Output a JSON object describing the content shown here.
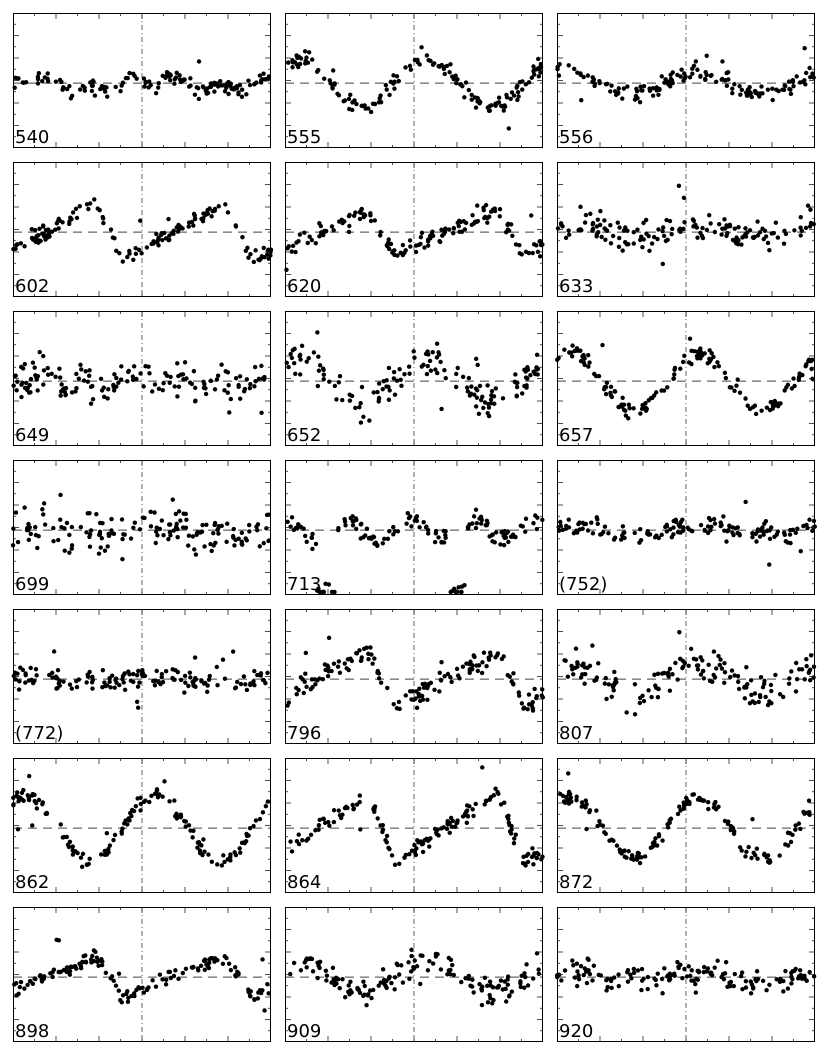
{
  "figure": {
    "panel_labels": [
      "540",
      "555",
      "556",
      "602",
      "620",
      "633",
      "649",
      "652",
      "657",
      "699",
      "713",
      "(752)",
      "(772)",
      "796",
      "807",
      "862",
      "864",
      "872",
      "898",
      "909",
      "920"
    ]
  },
  "chart_data": [
    {
      "type": "scatter",
      "label": "540",
      "x_range": [
        0,
        2
      ],
      "grid": false,
      "reference_line": "dashed horizontal at mean",
      "phase_marker": "dash-dot vertical at phase 1",
      "shape": "irregular",
      "amplitude": 0.18,
      "scatter": 0.16,
      "seed": 11
    },
    {
      "type": "scatter",
      "label": "555",
      "x_range": [
        0,
        2
      ],
      "grid": false,
      "reference_line": "dashed horizontal at mean",
      "phase_marker": "dash-dot vertical at phase 1",
      "shape": "sine",
      "amplitude": 0.45,
      "scatter": 0.16,
      "seed": 12
    },
    {
      "type": "scatter",
      "label": "556",
      "x_range": [
        0,
        2
      ],
      "grid": false,
      "reference_line": "dashed horizontal at mean",
      "phase_marker": "dash-dot vertical at phase 1",
      "shape": "sine",
      "amplitude": 0.22,
      "scatter": 0.16,
      "seed": 13
    },
    {
      "type": "scatter",
      "label": "602",
      "x_range": [
        0,
        2
      ],
      "grid": false,
      "reference_line": "dashed horizontal at mean",
      "phase_marker": "dash-dot vertical at phase 1",
      "shape": "sawtooth",
      "amplitude": 0.55,
      "scatter": 0.14,
      "seed": 14
    },
    {
      "type": "scatter",
      "label": "620",
      "x_range": [
        0,
        2
      ],
      "grid": false,
      "reference_line": "dashed horizontal at mean",
      "phase_marker": "dash-dot vertical at phase 1",
      "shape": "sawtooth",
      "amplitude": 0.45,
      "scatter": 0.16,
      "seed": 15
    },
    {
      "type": "scatter",
      "label": "633",
      "x_range": [
        0,
        2
      ],
      "grid": false,
      "reference_line": "dashed horizontal at mean",
      "phase_marker": "dash-dot vertical at phase 1",
      "shape": "irregular",
      "amplitude": 0.15,
      "scatter": 0.28,
      "seed": 16
    },
    {
      "type": "scatter",
      "label": "649",
      "x_range": [
        0,
        2
      ],
      "grid": false,
      "reference_line": "dashed horizontal at mean",
      "phase_marker": "dash-dot vertical at phase 1",
      "shape": "irregular",
      "amplitude": 0.15,
      "scatter": 0.32,
      "seed": 17
    },
    {
      "type": "scatter",
      "label": "652",
      "x_range": [
        0,
        2
      ],
      "grid": false,
      "reference_line": "dashed horizontal at mean",
      "phase_marker": "dash-dot vertical at phase 1",
      "shape": "sine",
      "amplitude": 0.4,
      "scatter": 0.3,
      "seed": 18
    },
    {
      "type": "scatter",
      "label": "657",
      "x_range": [
        0,
        2
      ],
      "grid": false,
      "reference_line": "dashed horizontal at mean",
      "phase_marker": "dash-dot vertical at phase 1",
      "shape": "sine",
      "amplitude": 0.55,
      "scatter": 0.16,
      "seed": 19
    },
    {
      "type": "scatter",
      "label": "699",
      "x_range": [
        0,
        2
      ],
      "grid": false,
      "reference_line": "dashed horizontal at mean",
      "phase_marker": "dash-dot vertical at phase 1",
      "shape": "irregular",
      "amplitude": 0.18,
      "scatter": 0.35,
      "seed": 20
    },
    {
      "type": "scatter",
      "label": "713",
      "x_range": [
        0,
        2
      ],
      "grid": false,
      "reference_line": "dashed horizontal at mean",
      "phase_marker": "dash-dot vertical at phase 1",
      "shape": "eclipse",
      "amplitude": 0.75,
      "scatter": 0.18,
      "seed": 21
    },
    {
      "type": "scatter",
      "label": "(752)",
      "x_range": [
        0,
        2
      ],
      "grid": false,
      "reference_line": "dashed horizontal at mean",
      "phase_marker": "dash-dot vertical at phase 1",
      "shape": "irregular",
      "amplitude": 0.15,
      "scatter": 0.18,
      "seed": 22
    },
    {
      "type": "scatter",
      "label": "(772)",
      "x_range": [
        0,
        2
      ],
      "grid": false,
      "reference_line": "dashed horizontal at mean",
      "phase_marker": "dash-dot vertical at phase 1",
      "shape": "irregular",
      "amplitude": 0.1,
      "scatter": 0.22,
      "seed": 23
    },
    {
      "type": "scatter",
      "label": "796",
      "x_range": [
        0,
        2
      ],
      "grid": false,
      "reference_line": "dashed horizontal at mean",
      "phase_marker": "dash-dot vertical at phase 1",
      "shape": "sawtooth",
      "amplitude": 0.55,
      "scatter": 0.2,
      "seed": 24
    },
    {
      "type": "scatter",
      "label": "807",
      "x_range": [
        0,
        2
      ],
      "grid": false,
      "reference_line": "dashed horizontal at mean",
      "phase_marker": "dash-dot vertical at phase 1",
      "shape": "sine",
      "amplitude": 0.3,
      "scatter": 0.3,
      "seed": 25
    },
    {
      "type": "scatter",
      "label": "862",
      "x_range": [
        0,
        2
      ],
      "grid": false,
      "reference_line": "dashed horizontal at mean",
      "phase_marker": "dash-dot vertical at phase 1",
      "shape": "sine",
      "amplitude": 0.65,
      "scatter": 0.14,
      "seed": 26
    },
    {
      "type": "scatter",
      "label": "864",
      "x_range": [
        0,
        2
      ],
      "grid": false,
      "reference_line": "dashed horizontal at mean",
      "phase_marker": "dash-dot vertical at phase 1",
      "shape": "sawtooth",
      "amplitude": 0.7,
      "scatter": 0.14,
      "seed": 27
    },
    {
      "type": "scatter",
      "label": "872",
      "x_range": [
        0,
        2
      ],
      "grid": false,
      "reference_line": "dashed horizontal at mean",
      "phase_marker": "dash-dot vertical at phase 1",
      "shape": "sine",
      "amplitude": 0.6,
      "scatter": 0.14,
      "seed": 28
    },
    {
      "type": "scatter",
      "label": "898",
      "x_range": [
        0,
        2
      ],
      "grid": false,
      "reference_line": "dashed horizontal at mean",
      "phase_marker": "dash-dot vertical at phase 1",
      "shape": "sawtooth",
      "amplitude": 0.4,
      "scatter": 0.14,
      "seed": 29
    },
    {
      "type": "scatter",
      "label": "909",
      "x_range": [
        0,
        2
      ],
      "grid": false,
      "reference_line": "dashed horizontal at mean",
      "phase_marker": "dash-dot vertical at phase 1",
      "shape": "sine",
      "amplitude": 0.3,
      "scatter": 0.28,
      "seed": 30
    },
    {
      "type": "scatter",
      "label": "920",
      "x_range": [
        0,
        2
      ],
      "grid": false,
      "reference_line": "dashed horizontal at mean",
      "phase_marker": "dash-dot vertical at phase 1",
      "shape": "irregular",
      "amplitude": 0.15,
      "scatter": 0.24,
      "seed": 31
    }
  ]
}
